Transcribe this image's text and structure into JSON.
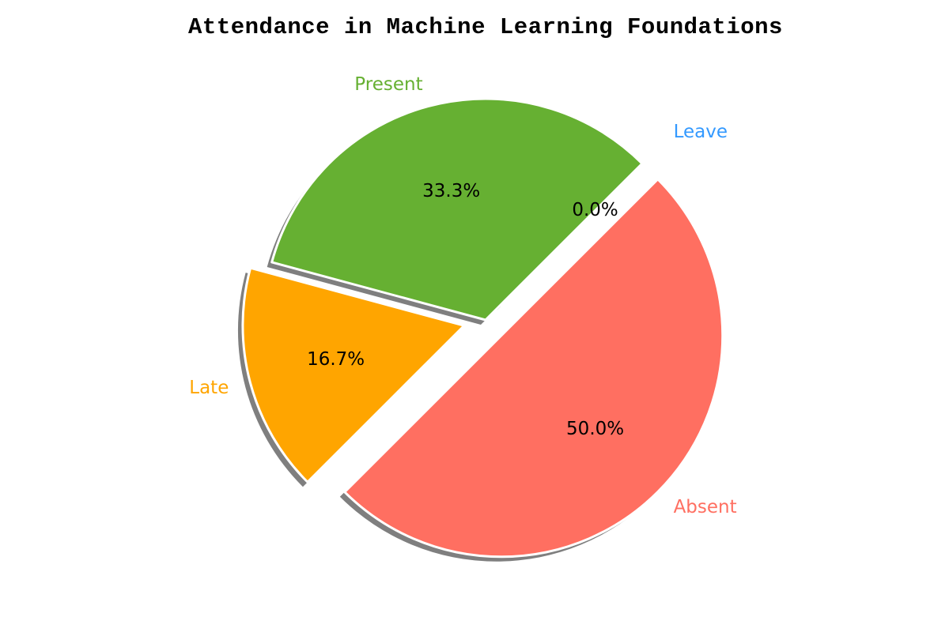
{
  "chart_data": {
    "type": "pie",
    "title": "Attendance in Machine Learning Foundations",
    "slices": [
      {
        "label": "Present",
        "value": 33.3,
        "pct_text": "33.3%",
        "color": "#66b032",
        "exploded": false
      },
      {
        "label": "Late",
        "value": 16.7,
        "pct_text": "16.7%",
        "color": "#ffa500",
        "exploded": true
      },
      {
        "label": "Absent",
        "value": 50.0,
        "pct_text": "50.0%",
        "color": "#ff6f61",
        "exploded": true
      },
      {
        "label": "Leave",
        "value": 0.0,
        "pct_text": "0.0%",
        "color": "#3399ff",
        "exploded": true
      }
    ],
    "start_angle_deg": 45,
    "direction": "counterclockwise",
    "shadow": true,
    "legend": "none"
  }
}
